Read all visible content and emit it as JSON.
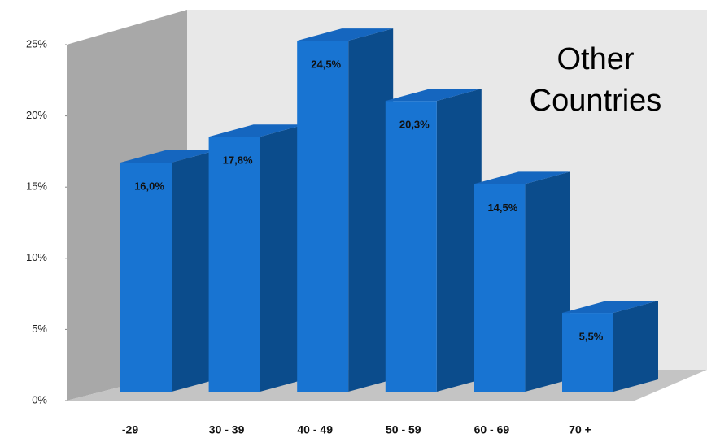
{
  "chart_data": {
    "type": "bar3d",
    "categories": [
      "-29",
      "30 - 39",
      "40 - 49",
      "50 - 59",
      "60 - 69",
      "70 +"
    ],
    "values": [
      16.0,
      17.8,
      24.5,
      20.3,
      14.5,
      5.5
    ],
    "value_labels": [
      "16,0%",
      "17,8%",
      "24,5%",
      "20,3%",
      "14,5%",
      "5,5%"
    ],
    "color": "#1874d2",
    "ylim": [
      0,
      25
    ],
    "yticks": [
      {
        "value": 0,
        "label": "0%"
      },
      {
        "value": 5,
        "label": "5%"
      },
      {
        "value": 10,
        "label": "10%"
      },
      {
        "value": 15,
        "label": "15%"
      },
      {
        "value": 20,
        "label": "20%"
      },
      {
        "value": 25,
        "label": "25%"
      }
    ],
    "annotation": [
      "Other",
      "Countries"
    ]
  }
}
